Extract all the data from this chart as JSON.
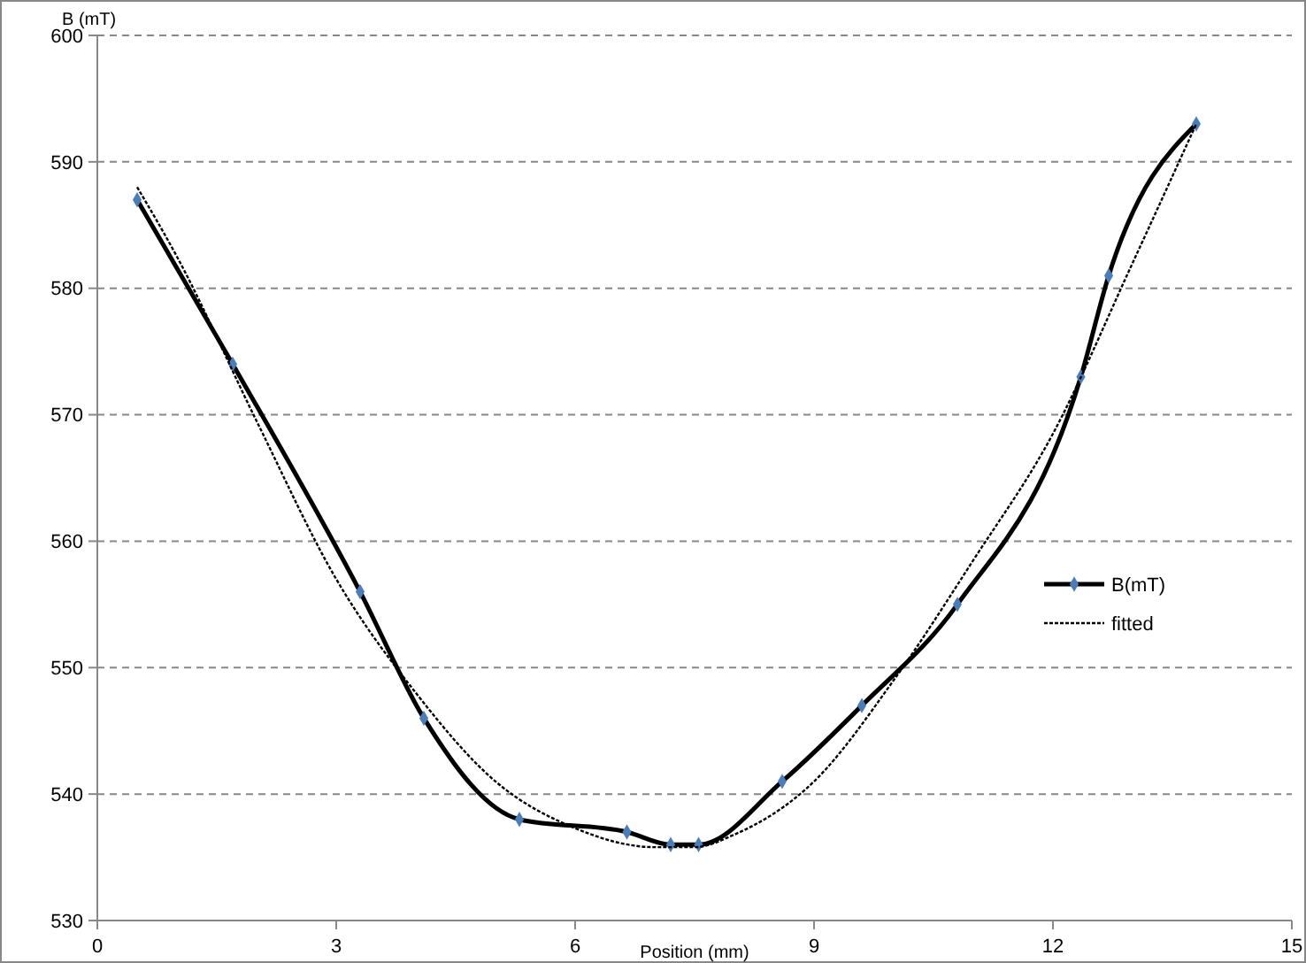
{
  "chart_data": {
    "type": "line",
    "xlabel": "Position (mm)",
    "ylabel": "B (mT)",
    "xlim": [
      0,
      15
    ],
    "xticks": [
      0,
      3,
      6,
      9,
      12,
      15
    ],
    "ylim": [
      530,
      600
    ],
    "yticks": [
      530,
      540,
      550,
      560,
      570,
      580,
      590,
      600
    ],
    "grid": "y",
    "legend": "right",
    "series": [
      {
        "name": "B(mT)",
        "color": "#000000",
        "marker": "diamond",
        "line_style": "solid",
        "x": [
          0.5,
          1.7,
          3.3,
          4.1,
          5.3,
          6.65,
          7.2,
          7.55,
          8.6,
          9.6,
          10.8,
          12.35,
          12.7,
          13.8
        ],
        "values": [
          587,
          574,
          556,
          546,
          538,
          537,
          536,
          536,
          541,
          547,
          555,
          573,
          581,
          593
        ]
      },
      {
        "name": "fitted",
        "color": "#000000",
        "marker": "none",
        "line_style": "dotted",
        "x": [
          0.5,
          1,
          2,
          3,
          4,
          5,
          6,
          7,
          7.5,
          8,
          9,
          10,
          11,
          12,
          13,
          13.8
        ],
        "values": [
          588,
          582.5,
          569.5,
          557,
          548,
          541,
          537.3,
          535.8,
          535.8,
          536.8,
          541,
          549,
          558.5,
          568.5,
          582,
          593
        ]
      }
    ]
  }
}
